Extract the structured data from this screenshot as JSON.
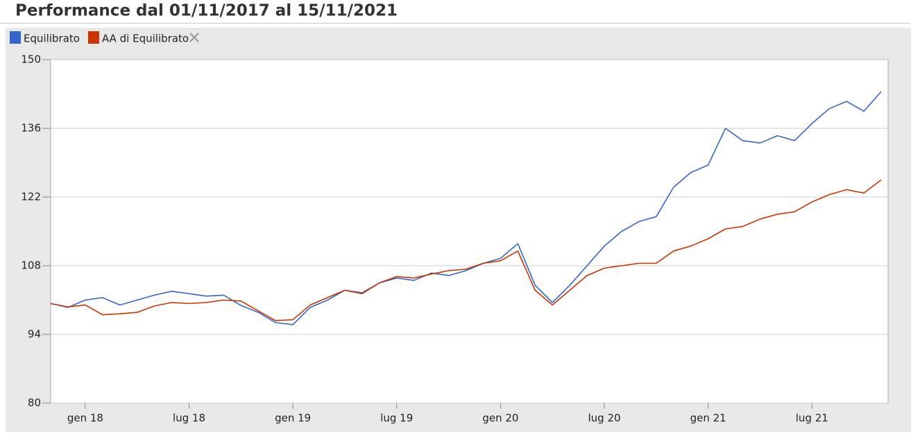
{
  "chart_data": {
    "type": "line",
    "title": "Performance dal 01/11/2017 al 15/11/2021",
    "x": [
      "2017-11",
      "2017-12",
      "2018-01",
      "2018-02",
      "2018-03",
      "2018-04",
      "2018-05",
      "2018-06",
      "2018-07",
      "2018-08",
      "2018-09",
      "2018-10",
      "2018-11",
      "2018-12",
      "2019-01",
      "2019-02",
      "2019-03",
      "2019-04",
      "2019-05",
      "2019-06",
      "2019-07",
      "2019-08",
      "2019-09",
      "2019-10",
      "2019-11",
      "2019-12",
      "2020-01",
      "2020-02",
      "2020-03",
      "2020-04",
      "2020-05",
      "2020-06",
      "2020-07",
      "2020-08",
      "2020-09",
      "2020-10",
      "2020-11",
      "2020-12",
      "2021-01",
      "2021-02",
      "2021-03",
      "2021-04",
      "2021-05",
      "2021-06",
      "2021-07",
      "2021-08",
      "2021-09",
      "2021-10",
      "2021-11"
    ],
    "series": [
      {
        "name": "Equilibrato",
        "color": "#3366cc",
        "values": [
          100.3,
          99.5,
          101.0,
          101.5,
          100.0,
          101.0,
          102.0,
          102.8,
          102.3,
          101.8,
          102.0,
          99.9,
          98.5,
          96.4,
          96.0,
          99.5,
          101.0,
          103.0,
          102.5,
          104.5,
          105.5,
          105.0,
          106.5,
          106.0,
          107.0,
          108.5,
          109.5,
          112.5,
          104.0,
          100.5,
          104.0,
          108.0,
          112.0,
          115.0,
          117.0,
          118.0,
          124.0,
          127.0,
          128.5,
          136.0,
          133.5,
          133.0,
          134.5,
          133.5,
          137.0,
          140.0,
          141.5,
          139.5,
          143.5
        ]
      },
      {
        "name": "AA di Equilibrato",
        "color": "#cc3300",
        "values": [
          100.3,
          99.6,
          100.0,
          98.0,
          98.2,
          98.5,
          99.8,
          100.5,
          100.3,
          100.5,
          101.0,
          100.8,
          98.8,
          96.8,
          97.0,
          100.0,
          101.5,
          103.0,
          102.3,
          104.5,
          105.8,
          105.5,
          106.3,
          107.0,
          107.3,
          108.5,
          109.0,
          111.0,
          103.0,
          100.0,
          103.0,
          106.0,
          107.5,
          108.0,
          108.5,
          108.5,
          111.0,
          112.0,
          113.5,
          115.5,
          116.0,
          117.5,
          118.5,
          119.0,
          121.0,
          122.5,
          123.5,
          122.8,
          125.5
        ]
      }
    ],
    "xticks": [
      {
        "value": "2018-01",
        "label": "gen 18"
      },
      {
        "value": "2018-07",
        "label": "lug 18"
      },
      {
        "value": "2019-01",
        "label": "gen 19"
      },
      {
        "value": "2019-07",
        "label": "lug 19"
      },
      {
        "value": "2020-01",
        "label": "gen 20"
      },
      {
        "value": "2020-07",
        "label": "lug 20"
      },
      {
        "value": "2021-01",
        "label": "gen 21"
      },
      {
        "value": "2021-07",
        "label": "lug 21"
      }
    ],
    "ylim": [
      80,
      150
    ],
    "yticks": [
      80,
      94,
      108,
      122,
      136,
      150
    ],
    "grid": true
  }
}
